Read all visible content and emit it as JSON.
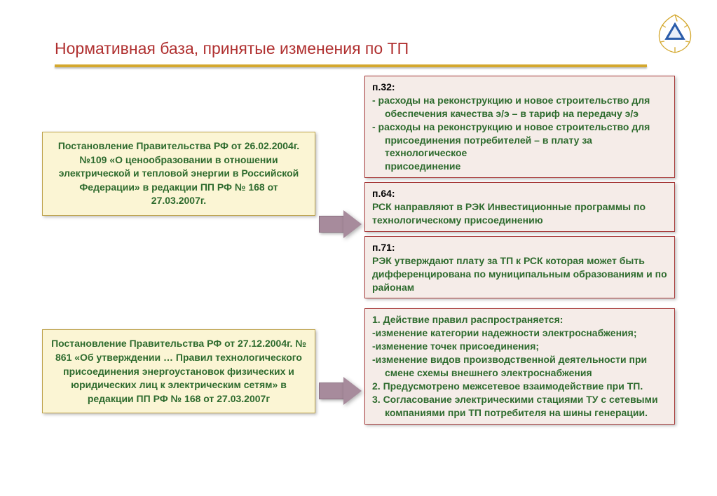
{
  "title": {
    "text": "Нормативная база, принятые изменения по ТП",
    "color": "#b03030"
  },
  "colors": {
    "left_bg": "#fbf5d4",
    "left_border": "#bda24a",
    "left_text": "#2e6b2e",
    "right_bg": "#f5ece8",
    "right_border": "#a63838",
    "right_text": "#2e6b2e",
    "arrow": "#a78b9c",
    "title_bar": "#d4a82e"
  },
  "row1": {
    "left": "Постановление Правительства РФ от 26.02.2004г. №109 «О ценообразовании в отношении электрической и тепловой энергии в Российской Федерации» в редакции ПП РФ № 168 от 27.03.2007г.",
    "right": [
      {
        "head": "п.32:",
        "lines": [
          "- расходы на реконструкцию и новое строительство для",
          "  обеспечения качества э/э – в тариф на передачу э/э",
          "- расходы на реконструкцию и новое строительство для",
          "  присоединения потребителей – в плату за технологическое",
          "  присоединение"
        ]
      },
      {
        "head": "п.64:",
        "lines": [
          "РСК направляют в РЭК Инвестиционные программы по технологическому присоединению"
        ]
      },
      {
        "head": "п.71:",
        "lines": [
          "РЭК утверждают плату за ТП к РСК которая может быть дифференцирована по муниципальным образованиям и по районам"
        ]
      }
    ]
  },
  "row2": {
    "left": "Постановление Правительства РФ от 27.12.2004г. № 861 «Об утверждении … Правил технологического присоединения энергоустановок физических и юридических лиц к электрическим сетям» в редакции ПП РФ № 168 от 27.03.2007г",
    "right": [
      {
        "lines": [
          "1. Действие правил распространяется:",
          "-изменение категории надежности электроснабжения;",
          "-изменение точек присоединения;",
          "-изменение видов производственной  деятельности при",
          "  смене схемы внешнего  электроснабжения",
          "2. Предусмотрено межсетевое взаимодействие при ТП.",
          "3. Согласование электрическими стациями ТУ  с сетевыми",
          "  компаниями при ТП потребителя на шины генерации."
        ]
      }
    ]
  }
}
